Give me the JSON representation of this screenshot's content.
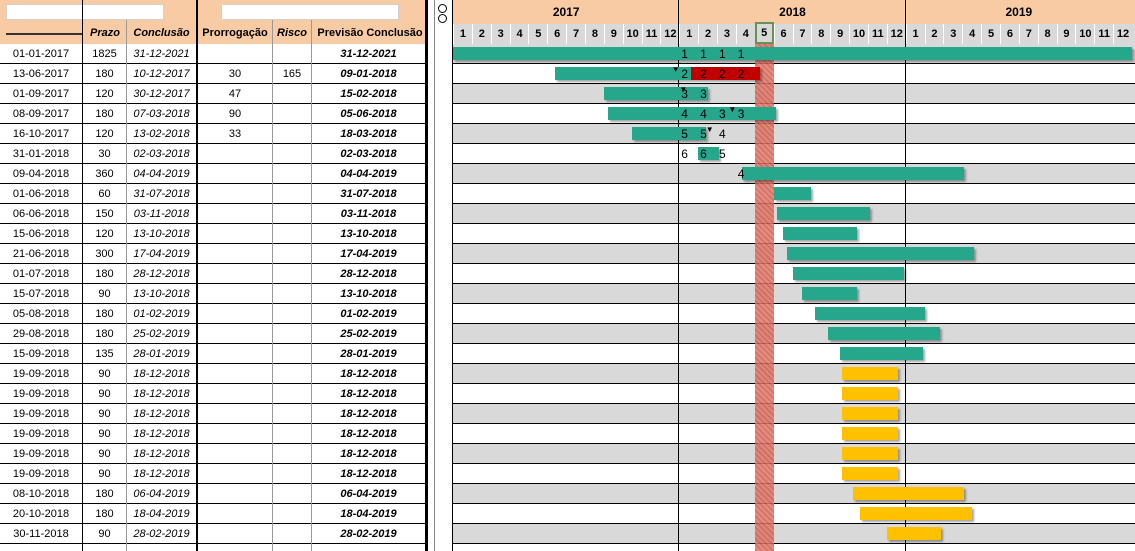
{
  "table": {
    "headers": {
      "prazo": "Prazo",
      "conclusao": "Conclusão",
      "prorrogacao": "Prorrogação",
      "risco": "Risco",
      "previsao": "Previsão Conclusão"
    },
    "rows": [
      {
        "inicio": "01-01-2017",
        "prazo": "1825",
        "conclusao": "31-12-2021",
        "prorrogacao": "",
        "risco": "",
        "previsao": "31-12-2021"
      },
      {
        "inicio": "13-06-2017",
        "prazo": "180",
        "conclusao": "10-12-2017",
        "prorrogacao": "30",
        "risco": "165",
        "previsao": "09-01-2018"
      },
      {
        "inicio": "01-09-2017",
        "prazo": "120",
        "conclusao": "30-12-2017",
        "prorrogacao": "47",
        "risco": "",
        "previsao": "15-02-2018"
      },
      {
        "inicio": "08-09-2017",
        "prazo": "180",
        "conclusao": "07-03-2018",
        "prorrogacao": "90",
        "risco": "",
        "previsao": "05-06-2018"
      },
      {
        "inicio": "16-10-2017",
        "prazo": "120",
        "conclusao": "13-02-2018",
        "prorrogacao": "33",
        "risco": "",
        "previsao": "18-03-2018"
      },
      {
        "inicio": "31-01-2018",
        "prazo": "30",
        "conclusao": "02-03-2018",
        "prorrogacao": "",
        "risco": "",
        "previsao": "02-03-2018"
      },
      {
        "inicio": "09-04-2018",
        "prazo": "360",
        "conclusao": "04-04-2019",
        "prorrogacao": "",
        "risco": "",
        "previsao": "04-04-2019"
      },
      {
        "inicio": "01-06-2018",
        "prazo": "60",
        "conclusao": "31-07-2018",
        "prorrogacao": "",
        "risco": "",
        "previsao": "31-07-2018"
      },
      {
        "inicio": "06-06-2018",
        "prazo": "150",
        "conclusao": "03-11-2018",
        "prorrogacao": "",
        "risco": "",
        "previsao": "03-11-2018"
      },
      {
        "inicio": "15-06-2018",
        "prazo": "120",
        "conclusao": "13-10-2018",
        "prorrogacao": "",
        "risco": "",
        "previsao": "13-10-2018"
      },
      {
        "inicio": "21-06-2018",
        "prazo": "300",
        "conclusao": "17-04-2019",
        "prorrogacao": "",
        "risco": "",
        "previsao": "17-04-2019"
      },
      {
        "inicio": "01-07-2018",
        "prazo": "180",
        "conclusao": "28-12-2018",
        "prorrogacao": "",
        "risco": "",
        "previsao": "28-12-2018"
      },
      {
        "inicio": "15-07-2018",
        "prazo": "90",
        "conclusao": "13-10-2018",
        "prorrogacao": "",
        "risco": "",
        "previsao": "13-10-2018"
      },
      {
        "inicio": "05-08-2018",
        "prazo": "180",
        "conclusao": "01-02-2019",
        "prorrogacao": "",
        "risco": "",
        "previsao": "01-02-2019"
      },
      {
        "inicio": "29-08-2018",
        "prazo": "180",
        "conclusao": "25-02-2019",
        "prorrogacao": "",
        "risco": "",
        "previsao": "25-02-2019"
      },
      {
        "inicio": "15-09-2018",
        "prazo": "135",
        "conclusao": "28-01-2019",
        "prorrogacao": "",
        "risco": "",
        "previsao": "28-01-2019"
      },
      {
        "inicio": "19-09-2018",
        "prazo": "90",
        "conclusao": "18-12-2018",
        "prorrogacao": "",
        "risco": "",
        "previsao": "18-12-2018"
      },
      {
        "inicio": "19-09-2018",
        "prazo": "90",
        "conclusao": "18-12-2018",
        "prorrogacao": "",
        "risco": "",
        "previsao": "18-12-2018"
      },
      {
        "inicio": "19-09-2018",
        "prazo": "90",
        "conclusao": "18-12-2018",
        "prorrogacao": "",
        "risco": "",
        "previsao": "18-12-2018"
      },
      {
        "inicio": "19-09-2018",
        "prazo": "90",
        "conclusao": "18-12-2018",
        "prorrogacao": "",
        "risco": "",
        "previsao": "18-12-2018"
      },
      {
        "inicio": "19-09-2018",
        "prazo": "90",
        "conclusao": "18-12-2018",
        "prorrogacao": "",
        "risco": "",
        "previsao": "18-12-2018"
      },
      {
        "inicio": "19-09-2018",
        "prazo": "90",
        "conclusao": "18-12-2018",
        "prorrogacao": "",
        "risco": "",
        "previsao": "18-12-2018"
      },
      {
        "inicio": "08-10-2018",
        "prazo": "180",
        "conclusao": "06-04-2019",
        "prorrogacao": "",
        "risco": "",
        "previsao": "06-04-2019"
      },
      {
        "inicio": "20-10-2018",
        "prazo": "180",
        "conclusao": "18-04-2019",
        "prorrogacao": "",
        "risco": "",
        "previsao": "18-04-2019"
      },
      {
        "inicio": "30-11-2018",
        "prazo": "90",
        "conclusao": "28-02-2019",
        "prorrogacao": "",
        "risco": "",
        "previsao": "28-02-2019"
      }
    ]
  },
  "gantt": {
    "years": [
      "2017",
      "2018",
      "2019"
    ],
    "months": [
      "1",
      "2",
      "3",
      "4",
      "5",
      "6",
      "7",
      "8",
      "9",
      "10",
      "11",
      "12"
    ],
    "current_month_label": "5",
    "colors": {
      "teal": "#26a68b",
      "red": "#c00000",
      "gold": "#ffc000",
      "today": "#e07b6a",
      "header": "#f8cba4",
      "band": "#d9d9d9"
    },
    "bars": [
      {
        "row": 0,
        "start": 0,
        "end": 36,
        "color": "teal"
      },
      {
        "row": 1,
        "start": 5.4,
        "end": 12.6,
        "color": "teal"
      },
      {
        "row": 1,
        "start": 12.6,
        "end": 16.3,
        "color": "red"
      },
      {
        "row": 2,
        "start": 8.0,
        "end": 13.5,
        "color": "teal"
      },
      {
        "row": 3,
        "start": 8.2,
        "end": 17.1,
        "color": "teal"
      },
      {
        "row": 4,
        "start": 9.5,
        "end": 13.4,
        "color": "teal"
      },
      {
        "row": 5,
        "start": 13.0,
        "end": 14.1,
        "color": "teal"
      },
      {
        "row": 6,
        "start": 15.3,
        "end": 27.1,
        "color": "teal"
      },
      {
        "row": 7,
        "start": 17.0,
        "end": 19.0,
        "color": "teal"
      },
      {
        "row": 8,
        "start": 17.2,
        "end": 22.1,
        "color": "teal"
      },
      {
        "row": 9,
        "start": 17.5,
        "end": 21.4,
        "color": "teal"
      },
      {
        "row": 10,
        "start": 17.7,
        "end": 27.6,
        "color": "teal"
      },
      {
        "row": 11,
        "start": 18.0,
        "end": 23.9,
        "color": "teal"
      },
      {
        "row": 12,
        "start": 18.5,
        "end": 21.4,
        "color": "teal"
      },
      {
        "row": 13,
        "start": 19.2,
        "end": 25.0,
        "color": "teal"
      },
      {
        "row": 14,
        "start": 19.9,
        "end": 25.8,
        "color": "teal"
      },
      {
        "row": 15,
        "start": 20.5,
        "end": 24.9,
        "color": "teal"
      },
      {
        "row": 16,
        "start": 20.6,
        "end": 23.6,
        "color": "gold"
      },
      {
        "row": 17,
        "start": 20.6,
        "end": 23.6,
        "color": "gold"
      },
      {
        "row": 18,
        "start": 20.6,
        "end": 23.6,
        "color": "gold"
      },
      {
        "row": 19,
        "start": 20.6,
        "end": 23.6,
        "color": "gold"
      },
      {
        "row": 20,
        "start": 20.6,
        "end": 23.6,
        "color": "gold"
      },
      {
        "row": 21,
        "start": 20.6,
        "end": 23.6,
        "color": "gold"
      },
      {
        "row": 22,
        "start": 21.2,
        "end": 27.1,
        "color": "gold"
      },
      {
        "row": 23,
        "start": 21.6,
        "end": 27.5,
        "color": "gold"
      },
      {
        "row": 24,
        "start": 23.0,
        "end": 25.9,
        "color": "gold"
      }
    ],
    "markers": [
      {
        "row": 0,
        "month": 12.1,
        "text": "1"
      },
      {
        "row": 0,
        "month": 13.1,
        "text": "1"
      },
      {
        "row": 0,
        "month": 14.1,
        "text": "1"
      },
      {
        "row": 0,
        "month": 15.1,
        "text": "1"
      },
      {
        "row": 1,
        "month": 12.1,
        "text": "2"
      },
      {
        "row": 1,
        "month": 13.1,
        "text": "2"
      },
      {
        "row": 1,
        "month": 14.1,
        "text": "2"
      },
      {
        "row": 1,
        "month": 15.1,
        "text": "2"
      },
      {
        "row": 2,
        "month": 12.1,
        "text": "3"
      },
      {
        "row": 2,
        "month": 13.1,
        "text": "3"
      },
      {
        "row": 3,
        "month": 12.1,
        "text": "4"
      },
      {
        "row": 3,
        "month": 13.1,
        "text": "4"
      },
      {
        "row": 3,
        "month": 14.1,
        "text": "3"
      },
      {
        "row": 3,
        "month": 15.1,
        "text": "3"
      },
      {
        "row": 4,
        "month": 12.1,
        "text": "5"
      },
      {
        "row": 4,
        "month": 13.1,
        "text": "5"
      },
      {
        "row": 4,
        "month": 14.1,
        "text": "4"
      },
      {
        "row": 5,
        "month": 12.1,
        "text": "6"
      },
      {
        "row": 5,
        "month": 13.1,
        "text": "6"
      },
      {
        "row": 5,
        "month": 14.1,
        "text": "5"
      },
      {
        "row": 6,
        "month": 15.1,
        "text": "4"
      }
    ],
    "triangles": [
      {
        "row": 1,
        "month": 11.6
      },
      {
        "row": 2,
        "month": 12.0
      },
      {
        "row": 3,
        "month": 14.6
      },
      {
        "row": 4,
        "month": 13.4
      }
    ]
  }
}
